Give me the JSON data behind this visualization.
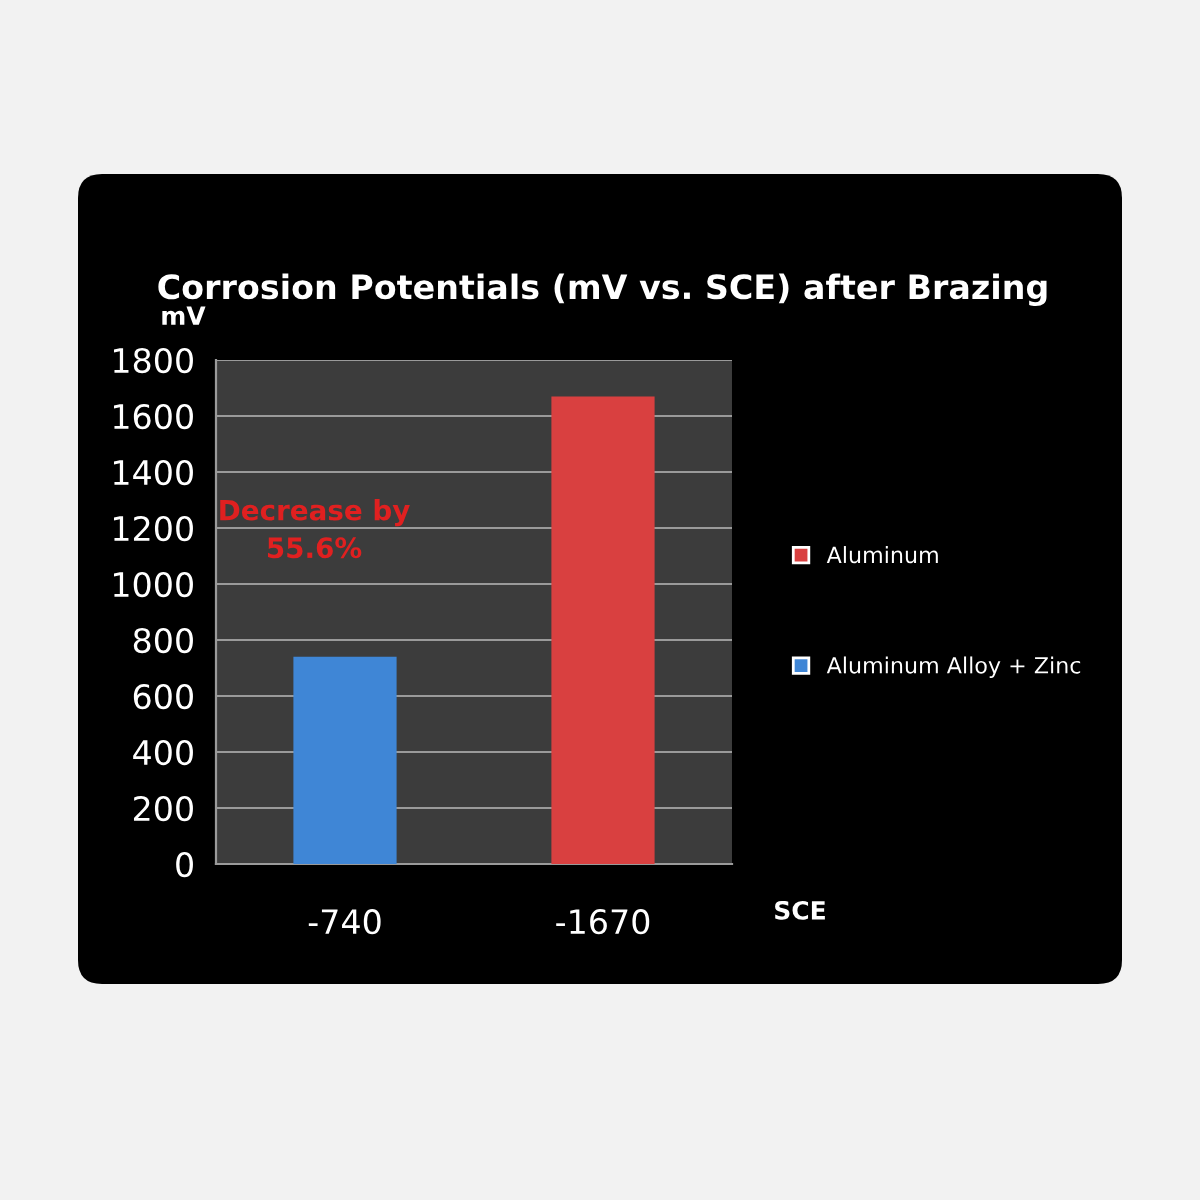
{
  "chart_data": {
    "type": "bar",
    "title": "Corrosion Potentials (mV vs. SCE) after Brazing",
    "xlabel": "SCE",
    "ylabel": "mV",
    "categories": [
      "-740",
      "-1670"
    ],
    "series": [
      {
        "name": "Aluminum",
        "color": "#d94040",
        "values": [
          null,
          1670
        ]
      },
      {
        "name": "Aluminum Alloy + Zinc",
        "color": "#3f86d6",
        "values": [
          740,
          null
        ]
      }
    ],
    "ylim": [
      0,
      1800
    ],
    "yticks": [
      0,
      200,
      400,
      600,
      800,
      1000,
      1200,
      1400,
      1600,
      1800
    ],
    "grid": "y",
    "legend": "right",
    "annotations": [
      "Decrease by\n55.6%"
    ]
  }
}
